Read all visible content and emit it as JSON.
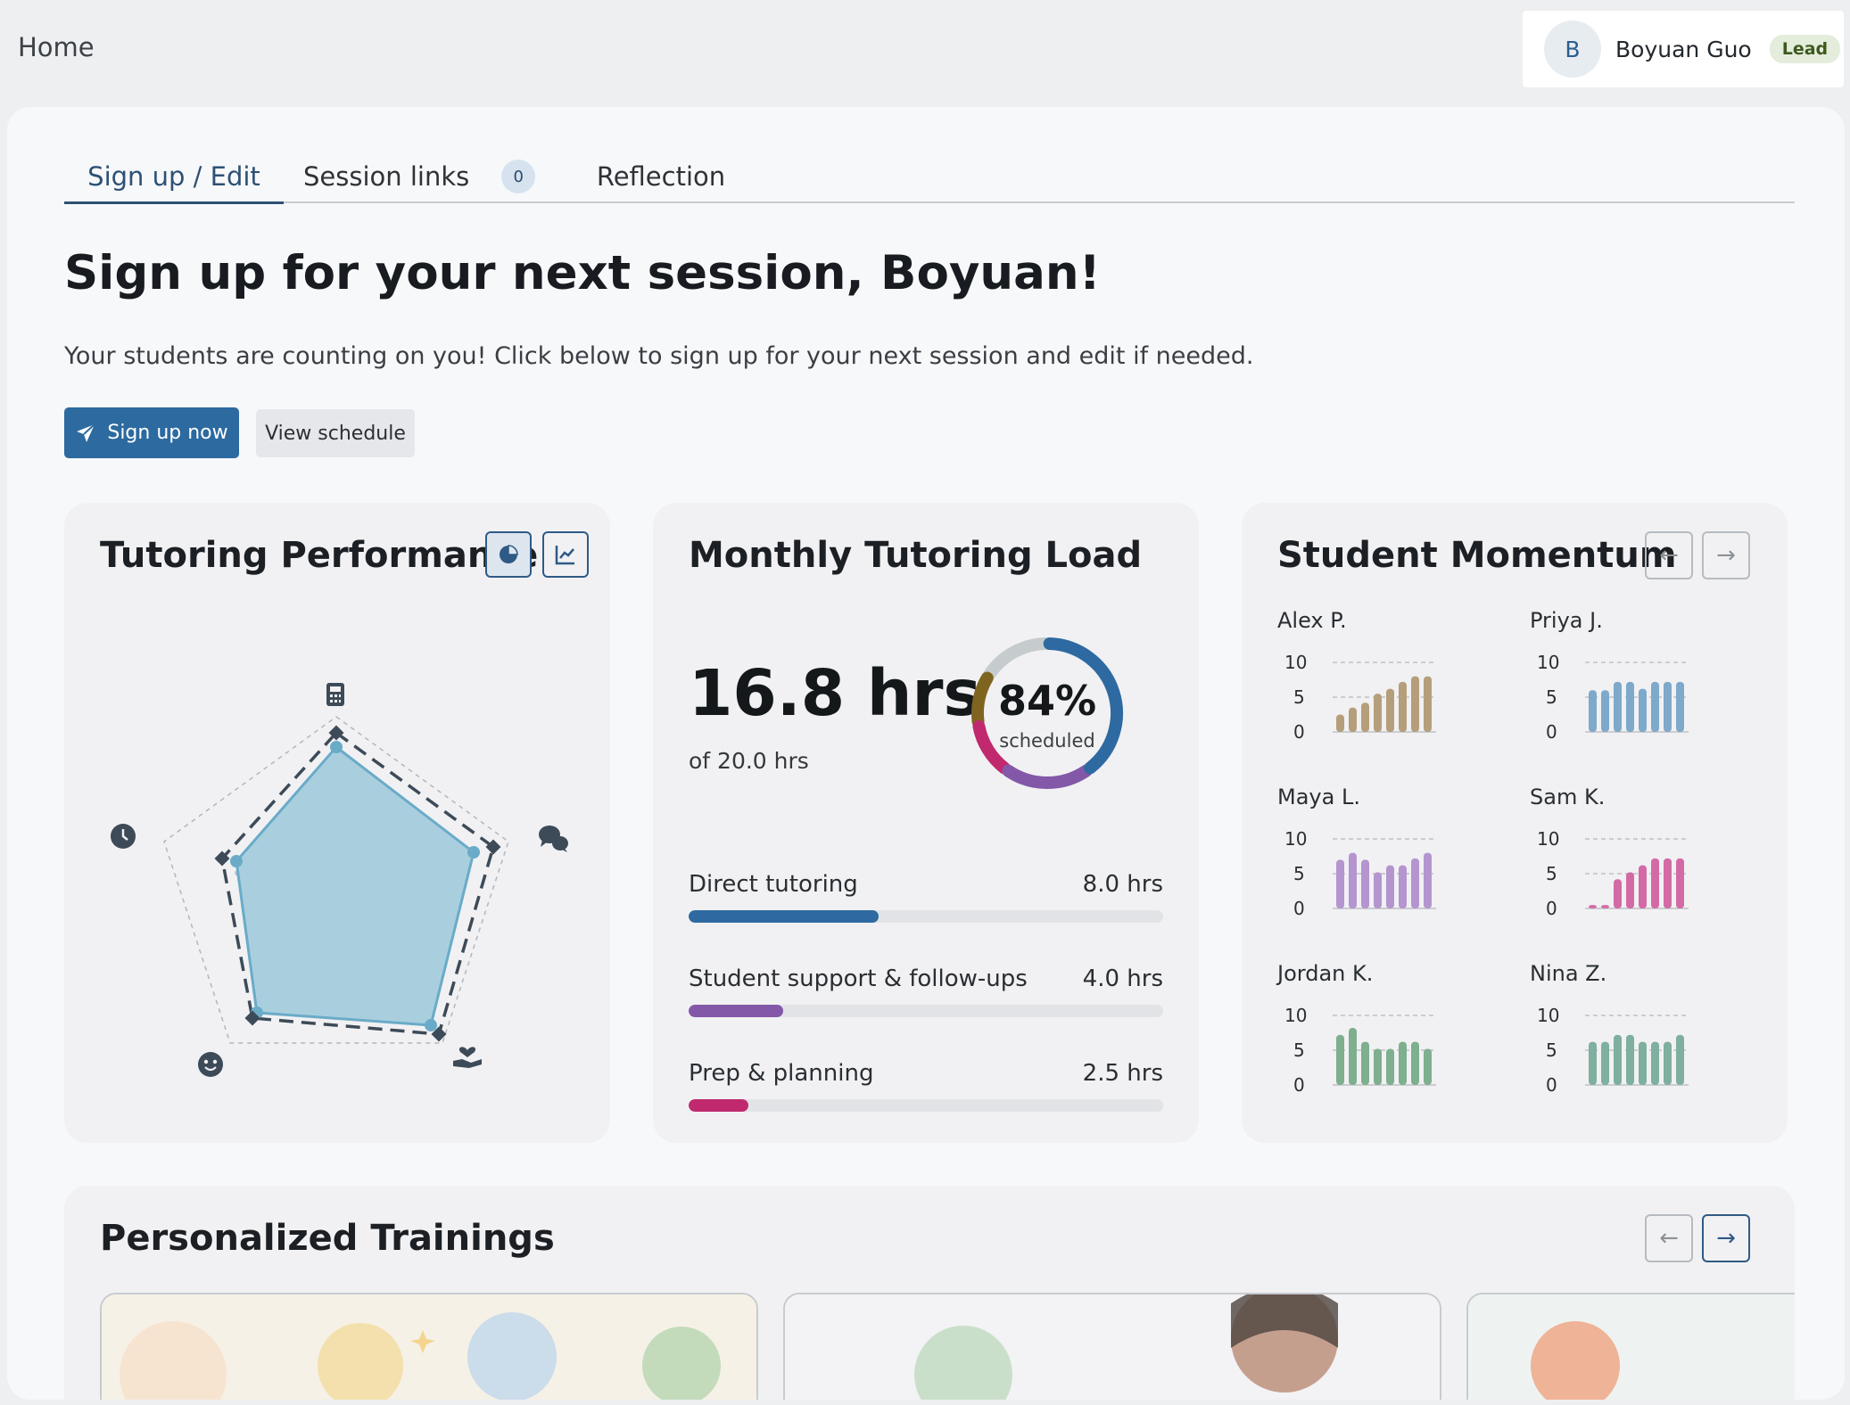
{
  "topbar": {
    "breadcrumb": "Home"
  },
  "user": {
    "initial": "B",
    "name": "Boyuan Guo",
    "role_badge": "Lead"
  },
  "tabs": [
    {
      "label": "Sign up / Edit",
      "active": true
    },
    {
      "label": "Session links",
      "badge": "0"
    },
    {
      "label": "Reflection"
    }
  ],
  "header": {
    "title": "Sign up for your next session, Boyuan!",
    "subtitle": "Your students are counting on you! Click below to sign up for your next session and edit if needed.",
    "primary_button": "Sign up now",
    "secondary_button": "View schedule"
  },
  "performance": {
    "title": "Tutoring Performance",
    "view_toggle": [
      "pie-chart-icon",
      "line-chart-icon"
    ],
    "axis_icons": [
      "calculator-icon",
      "chat-bubbles-icon",
      "heart-hand-icon",
      "smile-icon",
      "clock-icon"
    ],
    "colors": {
      "fill": "#a9cfdf",
      "stroke": "#6aabc8",
      "target": "#3d4a58"
    }
  },
  "load": {
    "title": "Monthly Tutoring Load",
    "hours": "16.8 hrs",
    "of_total": "of 20.0 hrs",
    "percent": "84%",
    "percent_label": "scheduled",
    "categories": [
      {
        "label": "Direct tutoring",
        "value": "8.0 hrs",
        "hours": 8.0,
        "color": "#2e6aa1"
      },
      {
        "label": "Student support & follow-ups",
        "value": "4.0 hrs",
        "hours": 4.0,
        "color": "#8358a8"
      },
      {
        "label": "Prep & planning",
        "value": "2.5 hrs",
        "hours": 2.5,
        "color": "#c0296e"
      }
    ],
    "donut_segments": [
      {
        "color": "#2e6aa1",
        "hours": 8.0
      },
      {
        "color": "#8358a8",
        "hours": 4.0
      },
      {
        "color": "#c0296e",
        "hours": 2.5
      },
      {
        "color": "#7f6420",
        "hours": 2.3
      },
      {
        "color": "#c6ccce",
        "hours": 3.2
      }
    ],
    "total_hours": 20.0
  },
  "momentum": {
    "title": "Student Momentum",
    "nav_prev": "←",
    "nav_next": "→",
    "tick_labels": [
      "10",
      "5",
      "0"
    ],
    "students": [
      {
        "name": "Alex P.",
        "color": "#b59f7a",
        "values": [
          2.5,
          3.5,
          4.2,
          5.5,
          6.2,
          7.2,
          8.0,
          8.0
        ]
      },
      {
        "name": "Priya J.",
        "color": "#7ea9cb",
        "values": [
          6.0,
          6.0,
          7.2,
          7.2,
          6.2,
          7.2,
          7.2,
          7.2
        ]
      },
      {
        "name": "Maya L.",
        "color": "#b495cf",
        "values": [
          7.0,
          8.0,
          7.0,
          5.2,
          6.2,
          6.2,
          7.2,
          8.0
        ]
      },
      {
        "name": "Sam K.",
        "color": "#d46aa5",
        "values": [
          0.5,
          0.5,
          4.2,
          5.2,
          6.2,
          7.2,
          7.2,
          7.2
        ]
      },
      {
        "name": "Jordan K.",
        "color": "#7eaf8f",
        "values": [
          7.2,
          8.2,
          6.2,
          5.2,
          5.2,
          6.2,
          6.2,
          5.2
        ]
      },
      {
        "name": "Nina Z.",
        "color": "#7eaf9f",
        "values": [
          6.2,
          6.2,
          7.2,
          7.2,
          6.2,
          6.2,
          6.2,
          7.2
        ]
      }
    ]
  },
  "trainings": {
    "title": "Personalized Trainings",
    "nav_prev": "←",
    "nav_next": "→"
  }
}
